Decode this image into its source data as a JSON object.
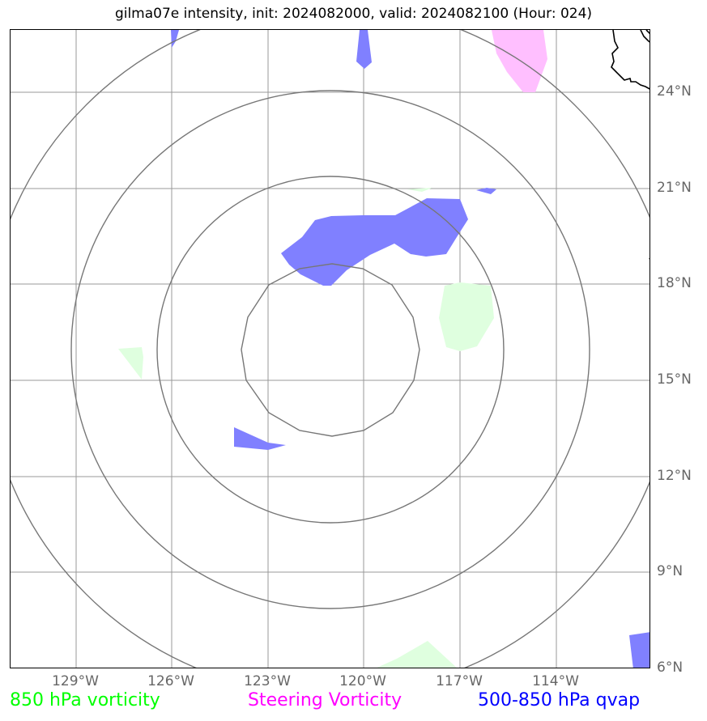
{
  "title": "gilma07e intensity, init: 2024082000, valid: 2024082100 (Hour: 024)",
  "map": {
    "lon_ticks": [
      "129°W",
      "126°W",
      "123°W",
      "120°W",
      "117°W",
      "114°W"
    ],
    "lat_ticks": [
      "24°N",
      "21°N",
      "18°N",
      "15°N",
      "12°N",
      "9°N",
      "6°N"
    ],
    "colors": {
      "frame": "#000000",
      "gridline": "#999999",
      "range_rings": "#777777",
      "coastline": "#000000",
      "vorticity_850": "#dfffdf",
      "steering_vorticity": "#ffbfff",
      "qvap": "#8080ff"
    }
  },
  "legend": [
    {
      "label": "850 hPa vorticity",
      "color": "#00ff00"
    },
    {
      "label": "Steering Vorticity",
      "color": "#ff00ff"
    },
    {
      "label": "500-850 hPa qvap",
      "color": "#0000ff"
    }
  ]
}
